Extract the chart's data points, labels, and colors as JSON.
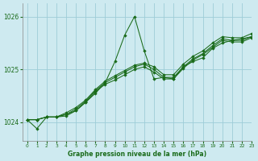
{
  "xlabel": "Graphe pression niveau de la mer (hPa)",
  "background_color": "#ceeaf0",
  "grid_color": "#9dcdd8",
  "line_color": "#1a6b1a",
  "marker_color": "#1a6b1a",
  "xlim": [
    -0.5,
    23
  ],
  "ylim": [
    1023.65,
    1026.25
  ],
  "yticks": [
    1024,
    1025,
    1026
  ],
  "xticks": [
    0,
    1,
    2,
    3,
    4,
    5,
    6,
    7,
    8,
    9,
    10,
    11,
    12,
    13,
    14,
    15,
    16,
    17,
    18,
    19,
    20,
    21,
    22,
    23
  ],
  "series": [
    {
      "x": [
        0,
        1,
        2,
        3,
        4,
        5,
        6,
        7,
        8,
        9,
        10,
        11,
        12,
        13,
        14,
        15,
        16,
        17,
        18,
        19,
        20,
        21,
        22,
        23
      ],
      "y": [
        1024.05,
        1023.88,
        1024.1,
        1024.1,
        1024.12,
        1024.22,
        1024.38,
        1024.55,
        1024.75,
        1025.15,
        1025.65,
        1026.0,
        1025.35,
        1024.82,
        1024.85,
        1024.82,
        1025.05,
        1025.15,
        1025.22,
        1025.4,
        1025.5,
        1025.55,
        1025.58,
        1025.62
      ]
    },
    {
      "x": [
        0,
        1,
        2,
        3,
        4,
        5,
        6,
        7,
        8,
        9,
        10,
        11,
        12,
        13,
        14,
        15,
        16,
        17,
        18,
        19,
        20,
        21,
        22,
        23
      ],
      "y": [
        1024.05,
        1024.05,
        1024.1,
        1024.1,
        1024.15,
        1024.25,
        1024.4,
        1024.6,
        1024.75,
        1024.85,
        1024.95,
        1025.05,
        1025.1,
        1025.0,
        1024.85,
        1024.85,
        1025.05,
        1025.2,
        1025.3,
        1025.45,
        1025.58,
        1025.55,
        1025.55,
        1025.62
      ]
    },
    {
      "x": [
        0,
        1,
        2,
        3,
        4,
        5,
        6,
        7,
        8,
        9,
        10,
        11,
        12,
        13,
        14,
        15,
        16,
        17,
        18,
        19,
        20,
        21,
        22,
        23
      ],
      "y": [
        1024.05,
        1024.05,
        1024.1,
        1024.1,
        1024.15,
        1024.22,
        1024.38,
        1024.58,
        1024.72,
        1024.8,
        1024.9,
        1025.0,
        1025.05,
        1024.95,
        1024.82,
        1024.82,
        1025.02,
        1025.18,
        1025.28,
        1025.42,
        1025.55,
        1025.52,
        1025.52,
        1025.6
      ]
    },
    {
      "x": [
        0,
        1,
        2,
        3,
        4,
        5,
        6,
        7,
        8,
        9,
        10,
        11,
        12,
        13,
        14,
        15,
        16,
        17,
        18,
        19,
        20,
        21,
        22,
        23
      ],
      "y": [
        1024.05,
        1024.05,
        1024.1,
        1024.1,
        1024.18,
        1024.28,
        1024.42,
        1024.62,
        1024.78,
        1024.88,
        1024.98,
        1025.08,
        1025.12,
        1025.05,
        1024.9,
        1024.9,
        1025.1,
        1025.25,
        1025.35,
        1025.5,
        1025.62,
        1025.6,
        1025.6,
        1025.68
      ]
    }
  ]
}
